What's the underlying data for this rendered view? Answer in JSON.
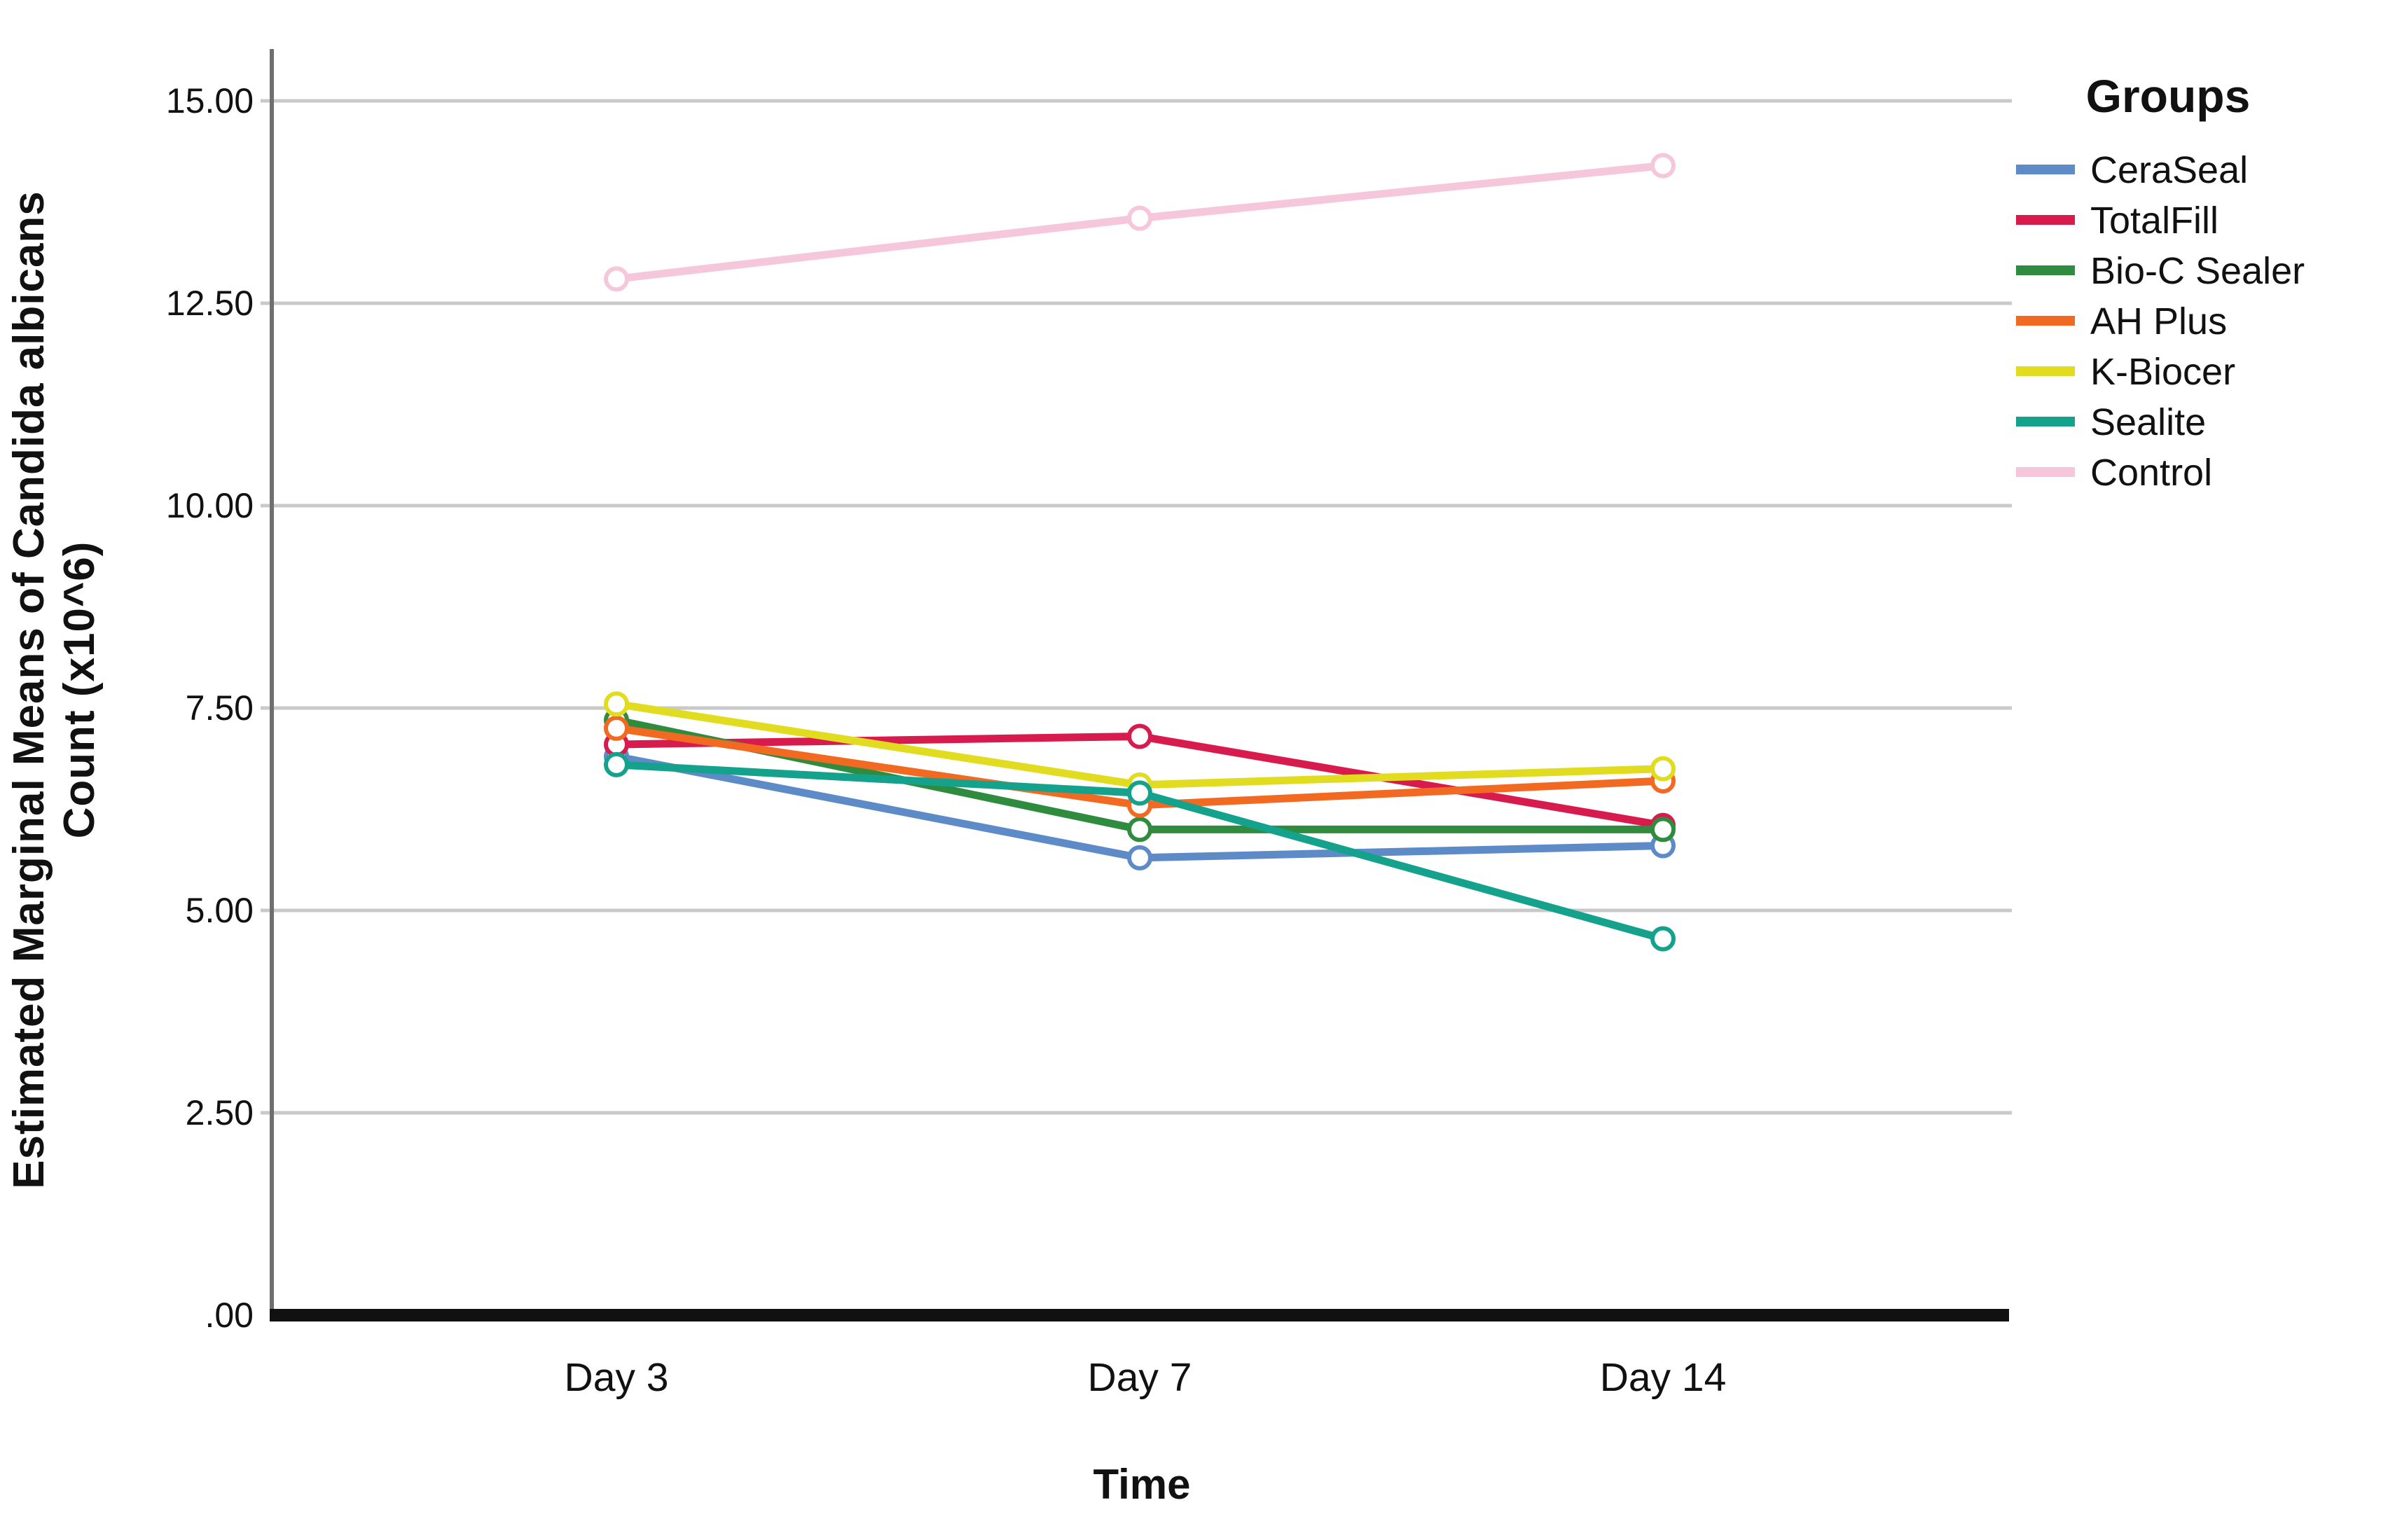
{
  "chart_data": {
    "type": "line",
    "legend_title": "Groups",
    "xlabel": "Time",
    "ylabel_line1": "Estimated Marginal Means of Candida albicans",
    "ylabel_line2": "Count (x10^6)",
    "categories": [
      "Day 3",
      "Day 7",
      "Day 14"
    ],
    "y_ticks": [
      {
        "label": ".00",
        "value": 0
      },
      {
        "label": "2.50",
        "value": 2.5
      },
      {
        "label": "5.00",
        "value": 5
      },
      {
        "label": "7.50",
        "value": 7.5
      },
      {
        "label": "10.00",
        "value": 10
      },
      {
        "label": "12.50",
        "value": 12.5
      },
      {
        "label": "15.00",
        "value": 15
      }
    ],
    "ylim": [
      0,
      15
    ],
    "grid": "horizontal",
    "legend_position": "right",
    "marker": "open-circle",
    "series": [
      {
        "name": "CeraSeal",
        "color": "#5d8bc7",
        "values": [
          6.9,
          5.65,
          5.8
        ]
      },
      {
        "name": "TotalFill",
        "color": "#d81b4d",
        "values": [
          7.05,
          7.15,
          6.05
        ]
      },
      {
        "name": "Bio-C Sealer",
        "color": "#2f8c3f",
        "values": [
          7.35,
          6.0,
          6.0
        ]
      },
      {
        "name": "AH Plus",
        "color": "#f26a21",
        "values": [
          7.25,
          6.3,
          6.6
        ]
      },
      {
        "name": "K-Biocer",
        "color": "#e2dc21",
        "values": [
          7.55,
          6.55,
          6.75
        ]
      },
      {
        "name": "Sealite",
        "color": "#15a28d",
        "values": [
          6.8,
          6.45,
          4.65
        ]
      },
      {
        "name": "Control",
        "color": "#f6c7da",
        "values": [
          12.8,
          13.55,
          14.2
        ]
      }
    ],
    "colors": {
      "x_axis": "#111111",
      "y_axis": "#6f6f6f",
      "gridline": "#c9c9c9",
      "text": "#111111"
    }
  }
}
